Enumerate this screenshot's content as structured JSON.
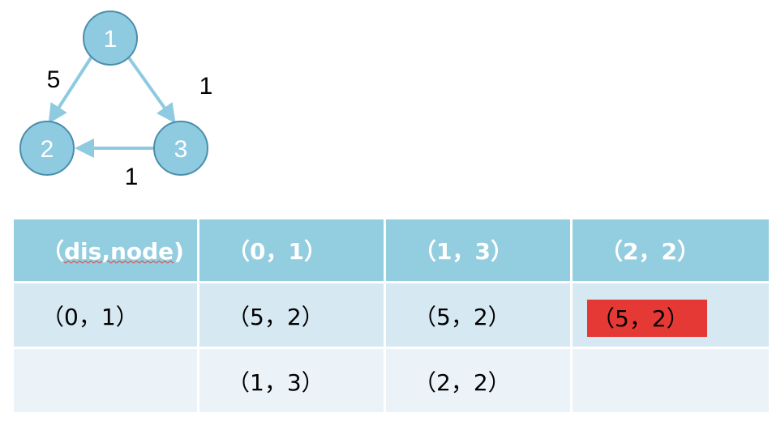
{
  "graph": {
    "colors": {
      "node_fill": "#8ecae0",
      "node_stroke": "#4a8eaa",
      "edge": "#8ecae0"
    },
    "nodes": [
      {
        "id": "1",
        "label": "1"
      },
      {
        "id": "2",
        "label": "2"
      },
      {
        "id": "3",
        "label": "3"
      }
    ],
    "edges": [
      {
        "from": "1",
        "to": "2",
        "weight": "5"
      },
      {
        "from": "1",
        "to": "3",
        "weight": "1"
      },
      {
        "from": "3",
        "to": "2",
        "weight": "1"
      }
    ]
  },
  "table": {
    "colors": {
      "header_bg": "#93cde0",
      "row1_bg": "#d6e8f2",
      "row2_bg": "#ecf3f8",
      "highlight": "#e53935"
    },
    "header": {
      "open": "（",
      "label": "dis,node",
      "close": ")",
      "c2": "（0，1）",
      "c3": "（1，3）",
      "c4": "（2，2）"
    },
    "row1": {
      "c1": "（0，1）",
      "c2": "（5，2）",
      "c3": "（5，2）",
      "c4": "（5，2）"
    },
    "row2": {
      "c1": "",
      "c2": "（1，3）",
      "c3": "（2，2）",
      "c4": ""
    }
  }
}
